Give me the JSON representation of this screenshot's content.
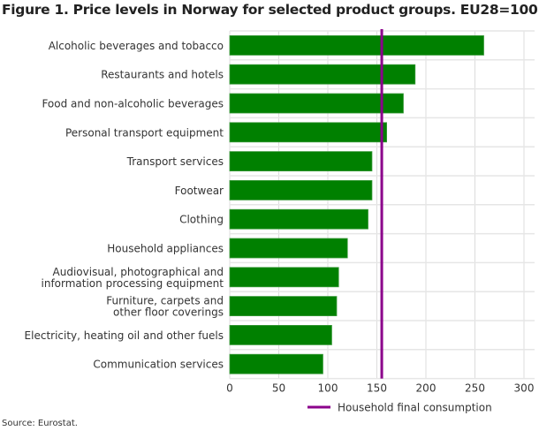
{
  "chart_data": {
    "type": "bar",
    "orientation": "horizontal",
    "title": "Figure 1. Price levels in Norway for selected product groups. EU28=100",
    "categories": [
      "Alcoholic beverages and tobacco",
      "Restaurants and hotels",
      "Food and non-alcoholic beverages",
      "Personal transport equipment",
      "Transport services",
      "Footwear",
      "Clothing",
      "Household appliances",
      "Audiovisual, photographical and\ninformation processing equipment",
      "Furniture, carpets and\nother floor coverings",
      "Electricity, heating oil and other fuels",
      "Communication services"
    ],
    "values": [
      259,
      189,
      177,
      160,
      145,
      145,
      141,
      120,
      111,
      109,
      104,
      95
    ],
    "reference_line": {
      "name": "Household final consumption",
      "value": 155,
      "color": "#8B008B"
    },
    "xlim": [
      0,
      300
    ],
    "xticks": [
      0,
      50,
      100,
      150,
      200,
      250,
      300
    ],
    "grid": true,
    "legend": "bottom",
    "bar_color": "#008000",
    "source": "Source: Eurostat."
  }
}
